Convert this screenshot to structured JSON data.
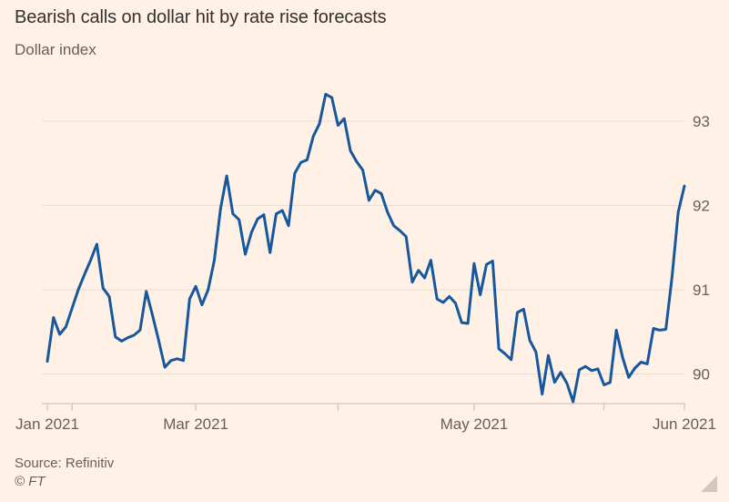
{
  "header": {
    "title": "Bearish calls on dollar hit by rate rise forecasts",
    "subtitle": "Dollar index"
  },
  "footer": {
    "source": "Source: Refinitiv",
    "copyright": "© FT"
  },
  "colors": {
    "background": "#fff1e5",
    "line": "#17579d",
    "grid": "#e9ddd2",
    "axis": "#c9bcb0",
    "label_text": "#66605c",
    "title_text": "#33302e"
  },
  "chart_data": {
    "type": "line",
    "title": "Bearish calls on dollar hit by rate rise forecasts",
    "ylabel": "Dollar index",
    "legend": "none",
    "grid": "horizontal",
    "y_ticks": [
      90,
      91,
      92,
      93
    ],
    "y_tick_side": "right",
    "y_range": [
      89.6,
      93.45
    ],
    "x_ticks": [
      {
        "date": "2021-01-26",
        "label": "Jan 2021"
      },
      {
        "date": "2021-02-01",
        "label": ""
      },
      {
        "date": "2021-03-01",
        "label": "Mar 2021"
      },
      {
        "date": "2021-04-01",
        "label": ""
      },
      {
        "date": "2021-05-03",
        "label": "May 2021"
      },
      {
        "date": "2021-06-01",
        "label": ""
      },
      {
        "date": "2021-06-18",
        "label": "Jun 2021"
      }
    ],
    "series": [
      {
        "name": "Dollar index",
        "dates": [
          "2021-01-26",
          "2021-01-27",
          "2021-01-28",
          "2021-01-29",
          "2021-02-01",
          "2021-02-02",
          "2021-02-03",
          "2021-02-04",
          "2021-02-05",
          "2021-02-08",
          "2021-02-09",
          "2021-02-10",
          "2021-02-11",
          "2021-02-12",
          "2021-02-15",
          "2021-02-16",
          "2021-02-17",
          "2021-02-18",
          "2021-02-19",
          "2021-02-22",
          "2021-02-23",
          "2021-02-24",
          "2021-02-25",
          "2021-02-26",
          "2021-03-01",
          "2021-03-02",
          "2021-03-03",
          "2021-03-04",
          "2021-03-05",
          "2021-03-08",
          "2021-03-09",
          "2021-03-10",
          "2021-03-11",
          "2021-03-12",
          "2021-03-15",
          "2021-03-16",
          "2021-03-17",
          "2021-03-18",
          "2021-03-19",
          "2021-03-22",
          "2021-03-23",
          "2021-03-24",
          "2021-03-25",
          "2021-03-26",
          "2021-03-29",
          "2021-03-30",
          "2021-03-31",
          "2021-04-01",
          "2021-04-02",
          "2021-04-05",
          "2021-04-06",
          "2021-04-07",
          "2021-04-08",
          "2021-04-09",
          "2021-04-12",
          "2021-04-13",
          "2021-04-14",
          "2021-04-15",
          "2021-04-16",
          "2021-04-19",
          "2021-04-20",
          "2021-04-21",
          "2021-04-22",
          "2021-04-23",
          "2021-04-26",
          "2021-04-27",
          "2021-04-28",
          "2021-04-29",
          "2021-04-30",
          "2021-05-03",
          "2021-05-04",
          "2021-05-05",
          "2021-05-06",
          "2021-05-07",
          "2021-05-10",
          "2021-05-11",
          "2021-05-12",
          "2021-05-13",
          "2021-05-14",
          "2021-05-17",
          "2021-05-18",
          "2021-05-19",
          "2021-05-20",
          "2021-05-21",
          "2021-05-24",
          "2021-05-25",
          "2021-05-26",
          "2021-05-27",
          "2021-05-28",
          "2021-05-31",
          "2021-06-01",
          "2021-06-02",
          "2021-06-03",
          "2021-06-04",
          "2021-06-07",
          "2021-06-08",
          "2021-06-09",
          "2021-06-10",
          "2021-06-11",
          "2021-06-14",
          "2021-06-15",
          "2021-06-16",
          "2021-06-17",
          "2021-06-18"
        ],
        "values": [
          90.15,
          90.67,
          90.47,
          90.56,
          90.78,
          91.0,
          91.18,
          91.35,
          91.54,
          91.02,
          90.92,
          90.44,
          90.39,
          90.43,
          90.46,
          90.52,
          90.98,
          90.7,
          90.4,
          90.08,
          90.16,
          90.18,
          90.16,
          90.89,
          91.04,
          90.82,
          91.0,
          91.35,
          91.96,
          92.35,
          91.9,
          91.83,
          91.42,
          91.68,
          91.84,
          91.89,
          91.44,
          91.9,
          91.94,
          91.76,
          92.38,
          92.51,
          92.54,
          92.82,
          92.97,
          93.32,
          93.28,
          92.95,
          93.03,
          92.65,
          92.52,
          92.42,
          92.06,
          92.18,
          92.14,
          91.92,
          91.76,
          91.7,
          91.63,
          91.09,
          91.23,
          91.14,
          91.35,
          90.89,
          90.85,
          90.92,
          90.84,
          90.61,
          90.6,
          91.31,
          90.94,
          91.3,
          91.34,
          90.3,
          90.24,
          90.17,
          90.73,
          90.77,
          90.4,
          90.26,
          89.76,
          90.22,
          89.9,
          90.02,
          89.89,
          89.67,
          90.05,
          90.09,
          90.04,
          90.06,
          89.87,
          89.9,
          90.52,
          90.2,
          89.96,
          90.07,
          90.14,
          90.12,
          90.54,
          90.52,
          90.53,
          91.15,
          91.92,
          92.23
        ]
      }
    ]
  }
}
